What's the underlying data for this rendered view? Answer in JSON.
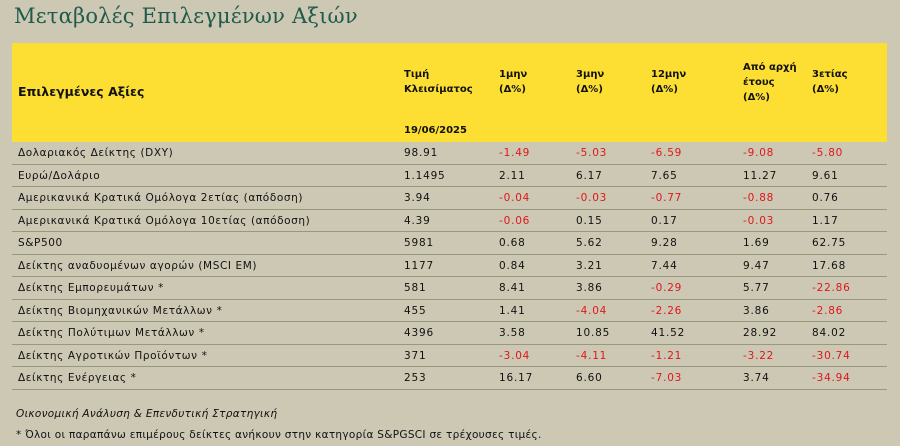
{
  "title": "Μεταβολές Επιλεγμένων Αξιών",
  "header": {
    "label": "Επιλεγμένες Αξίες",
    "columns": [
      {
        "line1": "Τιμή",
        "line2": "Κλεισίματος",
        "line3": ""
      },
      {
        "line1": "1μην",
        "line2": "(Δ%)",
        "line3": ""
      },
      {
        "line1": "3μην",
        "line2": "(Δ%)",
        "line3": ""
      },
      {
        "line1": "12μην",
        "line2": "(Δ%)",
        "line3": ""
      },
      {
        "line1": "Από αρχή",
        "line2": "έτους",
        "line3": "(Δ%)"
      },
      {
        "line1": "3ετίας",
        "line2": "(Δ%)",
        "line3": ""
      }
    ],
    "date": "19/06/2025"
  },
  "rows": [
    {
      "name": "Δολαριακός Δείκτης (DXY)",
      "values": [
        "98.91",
        "-1.49",
        "-5.03",
        "-6.59",
        "-9.08",
        "-5.80"
      ]
    },
    {
      "name": "Ευρώ/Δολάριο",
      "values": [
        "1.1495",
        "2.11",
        "6.17",
        "7.65",
        "11.27",
        "9.61"
      ]
    },
    {
      "name": "Αμερικανικά Κρατικά Ομόλογα 2ετίας (απόδοση)",
      "values": [
        "3.94",
        "-0.04",
        "-0.03",
        "-0.77",
        "-0.88",
        "0.76"
      ]
    },
    {
      "name": "Αμερικανικά Κρατικά Ομόλογα 10ετίας (απόδοση)",
      "values": [
        "4.39",
        "-0.06",
        "0.15",
        "0.17",
        "-0.03",
        "1.17"
      ]
    },
    {
      "name": "S&P500",
      "values": [
        "5981",
        "0.68",
        "5.62",
        "9.28",
        "1.69",
        "62.75"
      ]
    },
    {
      "name": "Δείκτης αναδυομένων αγορών (MSCI EM)",
      "values": [
        "1177",
        "0.84",
        "3.21",
        "7.44",
        "9.47",
        "17.68"
      ]
    },
    {
      "name": "Δείκτης Εμπορευμάτων *",
      "values": [
        "581",
        "8.41",
        "3.86",
        "-0.29",
        "5.77",
        "-22.86"
      ]
    },
    {
      "name": "Δείκτης Βιομηχανικών Μετάλλων *",
      "values": [
        "455",
        "1.41",
        "-4.04",
        "-2.26",
        "3.86",
        "-2.86"
      ]
    },
    {
      "name": "Δείκτης Πολύτιμων Μετάλλων *",
      "values": [
        "4396",
        "3.58",
        "10.85",
        "41.52",
        "28.92",
        "84.02"
      ]
    },
    {
      "name": "Δείκτης Αγροτικών Προϊόντων *",
      "values": [
        "371",
        "-3.04",
        "-4.11",
        "-1.21",
        "-3.22",
        "-30.74"
      ]
    },
    {
      "name": "Δείκτης Ενέργειας *",
      "values": [
        "253",
        "16.17",
        "6.60",
        "-7.03",
        "3.74",
        "-34.94"
      ]
    }
  ],
  "footer": {
    "source": "Οικονομική Ανάλυση & Επενδυτική Στρατηγική",
    "note": "* Όλοι οι παραπάνω επιμέρους δείκτες ανήκουν στην κατηγορία S&PGSCI σε τρέχουσες τιμές."
  },
  "colors": {
    "header_bg": "#fdde33",
    "page_bg": "#ccc8b4",
    "title": "#1f5a4a",
    "negative": "#e0161c"
  }
}
